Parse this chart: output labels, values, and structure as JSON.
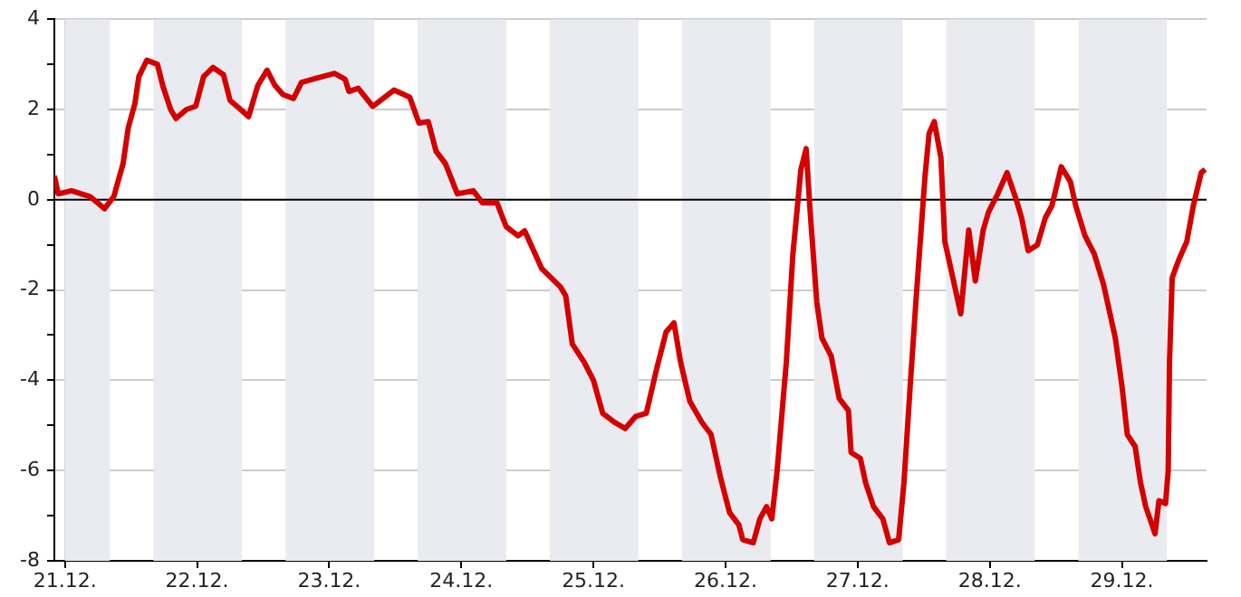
{
  "chart_data": {
    "type": "line",
    "x": [
      "--12-20T22:05",
      "--12-20T22:48",
      "--12-21T01:12",
      "--12-21T04:34",
      "--12-21T07:12",
      "--12-21T08:53",
      "--12-21T10:34",
      "--12-21T11:31",
      "--12-21T12:43",
      "--12-21T13:26",
      "--12-21T14:53",
      "--12-21T16:48",
      "--12-21T17:46",
      "--12-21T19:12",
      "--12-21T20:10",
      "--12-21T22:05",
      "--12-21T23:46",
      "--12-22T01:12",
      "--12-22T02:53",
      "--12-22T04:48",
      "--12-22T06:00",
      "--12-22T07:55",
      "--12-22T09:22",
      "--12-22T11:02",
      "--12-22T12:43",
      "--12-22T14:10",
      "--12-22T15:36",
      "--12-22T17:31",
      "--12-22T18:58",
      "--12-22T21:36",
      "--12-23T00:58",
      "--12-23T02:53",
      "--12-23T03:36",
      "--12-23T05:17",
      "--12-23T07:55",
      "--12-23T11:46",
      "--12-23T14:38",
      "--12-23T16:19",
      "--12-23T18:00",
      "--12-23T19:26",
      "--12-23T21:07",
      "--12-23T23:17",
      "--12-24T02:10",
      "--12-24T03:50",
      "--12-24T06:29",
      "--12-24T08:10",
      "--12-24T10:19",
      "--12-24T11:31",
      "--12-24T14:38",
      "--12-24T18:00",
      "--12-24T18:58",
      "--12-24T20:10",
      "--12-24T22:19",
      "--12-25T00:00",
      "--12-25T01:41",
      "--12-25T03:50",
      "--12-25T05:46",
      "--12-25T07:41",
      "--12-25T09:36",
      "--12-25T11:31",
      "--12-25T13:12",
      "--12-25T14:38",
      "--12-25T15:50",
      "--12-25T17:31",
      "--12-25T19:41",
      "--12-25T21:22",
      "--12-25T23:02",
      "--12-26T00:43",
      "--12-26T02:24",
      "--12-26T03:07",
      "--12-26T05:02",
      "--12-26T06:14",
      "--12-26T07:26",
      "--12-26T08:24",
      "--12-26T09:22",
      "--12-26T11:02",
      "--12-26T12:14",
      "--12-26T13:41",
      "--12-26T14:38",
      "--12-26T15:22",
      "--12-26T16:34",
      "--12-26T17:31",
      "--12-26T19:12",
      "--12-26T20:38",
      "--12-26T22:19",
      "--12-26T22:48",
      "--12-27T00:29",
      "--12-27T01:26",
      "--12-27T02:53",
      "--12-27T04:34",
      "--12-27T05:46",
      "--12-27T07:26",
      "--12-27T08:24",
      "--12-27T09:36",
      "--12-27T10:34",
      "--12-27T11:31",
      "--12-27T12:14",
      "--12-27T12:58",
      "--12-27T13:55",
      "--12-27T15:07",
      "--12-27T15:50",
      "--12-27T17:17",
      "--12-27T18:43",
      "--12-27T20:10",
      "--12-27T21:22",
      "--12-27T22:48",
      "--12-27T23:46",
      "--12-28T01:26",
      "--12-28T03:07",
      "--12-28T04:48",
      "--12-28T05:46",
      "--12-28T06:58",
      "--12-28T08:38",
      "--12-28T10:05",
      "--12-28T11:17",
      "--12-28T12:58",
      "--12-28T14:38",
      "--12-28T15:36",
      "--12-28T17:17",
      "--12-28T18:58",
      "--12-28T20:38",
      "--12-28T21:50",
      "--12-28T22:48",
      "--12-29T00:00",
      "--12-29T00:58",
      "--12-29T02:24",
      "--12-29T03:22",
      "--12-29T04:19",
      "--12-29T06:00",
      "--12-29T06:43",
      "--12-29T07:55",
      "--12-29T08:24",
      "--12-29T08:38",
      "--12-29T09:07",
      "--12-29T10:19",
      "--12-29T11:46",
      "--12-29T12:58",
      "--12-29T14:24",
      "--12-29T15:07"
    ],
    "series": [
      {
        "color": "#d40000",
        "values": [
          0.53,
          0.13,
          0.2,
          0.07,
          -0.2,
          0.07,
          0.8,
          1.6,
          2.13,
          2.73,
          3.09,
          3.0,
          2.53,
          2.0,
          1.8,
          2.0,
          2.07,
          2.73,
          2.93,
          2.77,
          2.2,
          2.0,
          1.84,
          2.53,
          2.87,
          2.53,
          2.33,
          2.24,
          2.6,
          2.69,
          2.8,
          2.67,
          2.4,
          2.47,
          2.07,
          2.43,
          2.27,
          1.7,
          1.73,
          1.07,
          0.8,
          0.13,
          0.2,
          -0.07,
          -0.07,
          -0.6,
          -0.8,
          -0.69,
          -1.53,
          -1.93,
          -2.13,
          -3.2,
          -3.6,
          -4.0,
          -4.73,
          -4.93,
          -5.07,
          -4.8,
          -4.73,
          -3.73,
          -2.93,
          -2.73,
          -3.6,
          -4.47,
          -4.93,
          -5.2,
          -6.13,
          -6.93,
          -7.2,
          -7.53,
          -7.6,
          -7.07,
          -6.8,
          -7.07,
          -6.0,
          -3.6,
          -1.2,
          0.67,
          1.13,
          -0.27,
          -2.27,
          -3.07,
          -3.47,
          -4.4,
          -4.67,
          -5.6,
          -5.73,
          -6.27,
          -6.8,
          -7.07,
          -7.6,
          -7.53,
          -6.27,
          -4.0,
          -2.27,
          -0.67,
          0.53,
          1.47,
          1.73,
          0.93,
          -0.93,
          -1.73,
          -2.53,
          -0.67,
          -1.8,
          -0.67,
          -0.27,
          0.13,
          0.6,
          0.0,
          -0.4,
          -1.13,
          -1.0,
          -0.4,
          -0.13,
          0.73,
          0.4,
          -0.13,
          -0.8,
          -1.2,
          -1.87,
          -2.53,
          -3.07,
          -4.13,
          -5.2,
          -5.47,
          -6.27,
          -6.8,
          -7.4,
          -6.67,
          -6.73,
          -6.0,
          -3.6,
          -1.73,
          -1.33,
          -0.93,
          -0.13,
          0.6,
          0.67
        ]
      }
    ],
    "xlim": [
      "--12-20T22:05",
      "--12-29T15:22"
    ],
    "xticks": [
      {
        "value": "--12-21",
        "label": "21.12."
      },
      {
        "value": "--12-22",
        "label": "22.12."
      },
      {
        "value": "--12-23",
        "label": "23.12."
      },
      {
        "value": "--12-24",
        "label": "24.12."
      },
      {
        "value": "--12-25",
        "label": "25.12."
      },
      {
        "value": "--12-26",
        "label": "26.12."
      },
      {
        "value": "--12-27",
        "label": "27.12."
      },
      {
        "value": "--12-28",
        "label": "28.12."
      },
      {
        "value": "--12-29",
        "label": "29.12."
      }
    ],
    "ylim": [
      -8,
      4
    ],
    "yticks": [
      -8,
      {
        "value": -7,
        "label": null
      },
      -6,
      {
        "value": -5,
        "label": null
      },
      -4,
      {
        "value": -3,
        "label": null
      },
      -2,
      {
        "value": -1,
        "label": null
      },
      0,
      {
        "value": 1,
        "label": null
      },
      2,
      {
        "value": 3,
        "label": null
      },
      4
    ],
    "grid": true,
    "marker": "none",
    "line_style": "solid",
    "legend": false,
    "ref_lines": [
      {
        "axis": "y",
        "value": 0,
        "color": "#000000"
      }
    ],
    "bands": [
      {
        "axis": "x",
        "from": "--12-21T00:00",
        "to": "--12-21T08:10",
        "color": "#eaebf0"
      },
      {
        "axis": "x",
        "from": "--12-21T16:05",
        "to": "--12-22T08:10",
        "color": "#eaebf0"
      },
      {
        "axis": "x",
        "from": "--12-22T16:05",
        "to": "--12-23T08:10",
        "color": "#eaebf0"
      },
      {
        "axis": "x",
        "from": "--12-23T16:05",
        "to": "--12-24T08:10",
        "color": "#eaebf0"
      },
      {
        "axis": "x",
        "from": "--12-24T16:05",
        "to": "--12-25T08:10",
        "color": "#eaebf0"
      },
      {
        "axis": "x",
        "from": "--12-25T16:05",
        "to": "--12-26T08:10",
        "color": "#eaebf0"
      },
      {
        "axis": "x",
        "from": "--12-26T16:05",
        "to": "--12-27T08:10",
        "color": "#eaebf0"
      },
      {
        "axis": "x",
        "from": "--12-27T16:05",
        "to": "--12-28T08:10",
        "color": "#eaebf0"
      },
      {
        "axis": "x",
        "from": "--12-28T16:05",
        "to": "--12-29T08:10",
        "color": "#eaebf0"
      }
    ]
  }
}
